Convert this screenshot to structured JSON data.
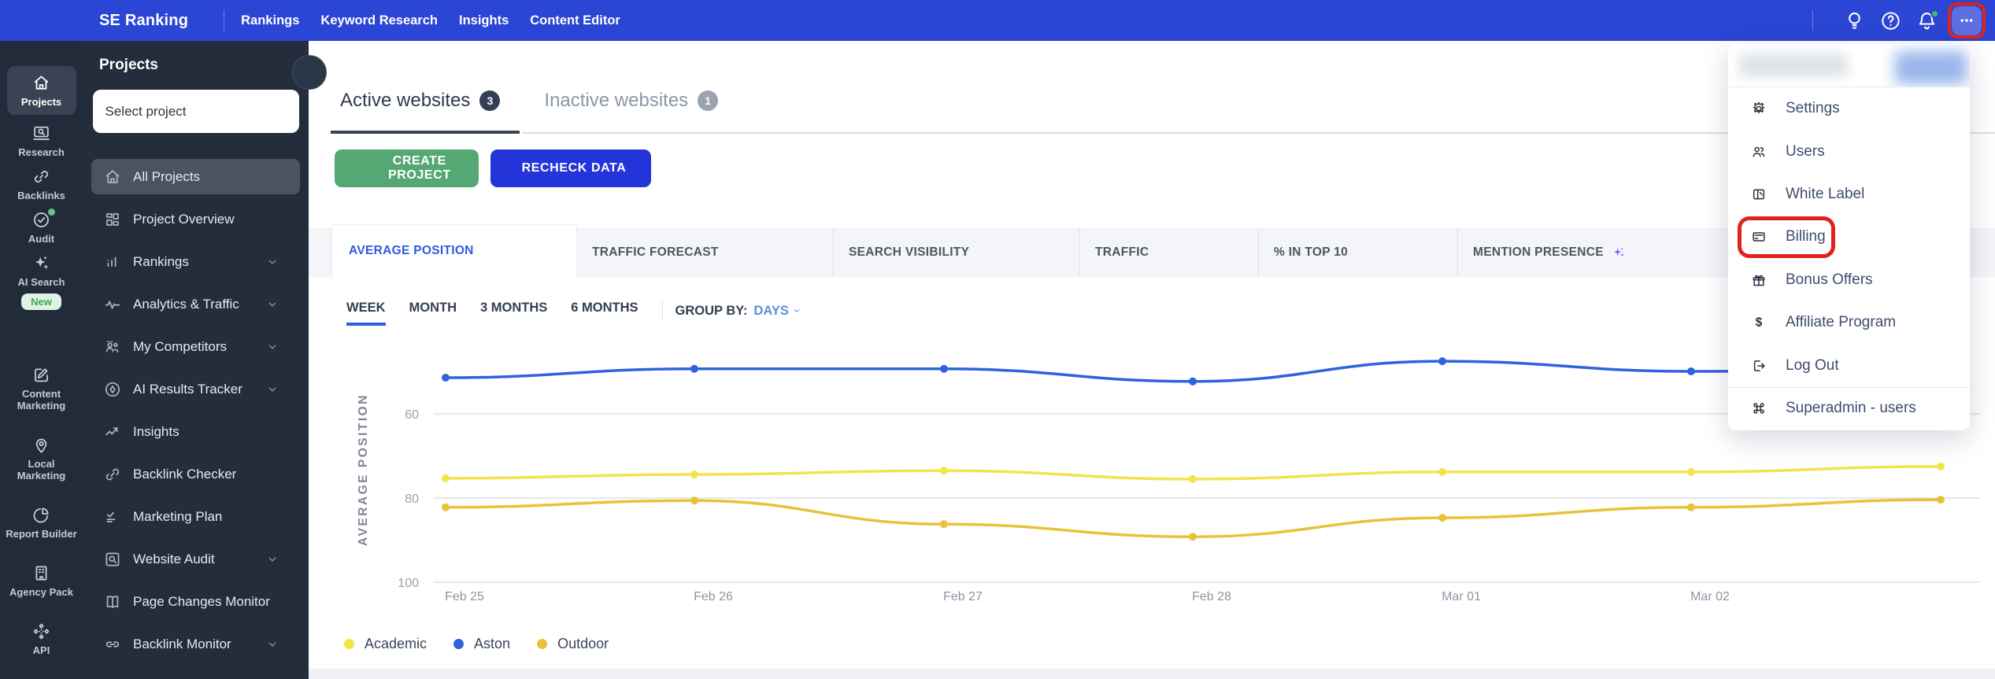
{
  "topbar": {
    "brand": "SE Ranking",
    "nav": [
      {
        "label": "Rankings"
      },
      {
        "label": "Keyword Research"
      },
      {
        "label": "Insights"
      },
      {
        "label": "Content Editor"
      }
    ],
    "right_icons": [
      {
        "name": "lightbulb-icon"
      },
      {
        "name": "help-icon"
      },
      {
        "name": "bell-icon",
        "has_notification_dot": true
      },
      {
        "name": "more-icon"
      }
    ]
  },
  "rail": {
    "items": [
      {
        "label": "Projects",
        "icon": "home-icon",
        "active": true
      },
      {
        "label": "Research",
        "icon": "research-icon"
      },
      {
        "label": "Backlinks",
        "icon": "backlinks-icon"
      },
      {
        "label": "Audit",
        "icon": "audit-icon",
        "dot": true
      },
      {
        "label": "AI Search",
        "icon": "ai-sparkles-icon",
        "badge": "New"
      },
      {
        "label": "Content Marketing",
        "icon": "content-marketing-icon",
        "gap": "lg"
      },
      {
        "label": "Local Marketing",
        "icon": "local-marketing-icon",
        "gap": "md"
      },
      {
        "label": "Report Builder",
        "icon": "report-builder-icon",
        "gap": "md"
      },
      {
        "label": "Agency Pack",
        "icon": "agency-pack-icon",
        "gap": "md"
      },
      {
        "label": "API",
        "icon": "api-icon",
        "gap": "md"
      }
    ]
  },
  "project_panel": {
    "title": "Projects",
    "select_label": "Select project",
    "items": [
      {
        "label": "All Projects",
        "icon": "home-icon",
        "active": true
      },
      {
        "label": "Project Overview",
        "icon": "overview-icon"
      },
      {
        "label": "Rankings",
        "icon": "rankings-icon",
        "expandable": true
      },
      {
        "label": "Analytics & Traffic",
        "icon": "analytics-icon",
        "expandable": true
      },
      {
        "label": "My Competitors",
        "icon": "competitors-icon",
        "expandable": true
      },
      {
        "label": "AI Results Tracker",
        "icon": "ai-results-icon",
        "expandable": true
      },
      {
        "label": "Insights",
        "icon": "insights-icon"
      },
      {
        "label": "Backlink Checker",
        "icon": "backlink-checker-icon"
      },
      {
        "label": "Marketing Plan",
        "icon": "marketing-plan-icon"
      },
      {
        "label": "Website Audit",
        "icon": "website-audit-icon",
        "expandable": true
      },
      {
        "label": "Page Changes Monitor",
        "icon": "page-changes-icon"
      },
      {
        "label": "Backlink Monitor",
        "icon": "backlink-monitor-icon",
        "expandable": true
      }
    ]
  },
  "content": {
    "website_tabs": [
      {
        "label": "Active websites",
        "count": "3",
        "active": true
      },
      {
        "label": "Inactive websites",
        "count": "1",
        "active": false
      }
    ],
    "create_button": "CREATE PROJECT",
    "recheck_button": "RECHECK DATA",
    "metric_tabs": [
      {
        "label": "AVERAGE POSITION",
        "active": true
      },
      {
        "label": "TRAFFIC FORECAST"
      },
      {
        "label": "SEARCH VISIBILITY"
      },
      {
        "label": "TRAFFIC"
      },
      {
        "label": "% IN TOP 10"
      },
      {
        "label": "MENTION PRESENCE",
        "ai": true
      }
    ],
    "range_tabs": [
      {
        "label": "WEEK",
        "active": true
      },
      {
        "label": "MONTH"
      },
      {
        "label": "3 MONTHS"
      },
      {
        "label": "6 MONTHS"
      }
    ],
    "group_by_label": "GROUP BY:",
    "group_by_value": "DAYS"
  },
  "chart_data": {
    "type": "line",
    "title": "",
    "xlabel": "",
    "ylabel": "AVERAGE POSITION",
    "categories": [
      "Feb 25",
      "Feb 26",
      "Feb 27",
      "Feb 28",
      "Mar 01",
      "Mar 02",
      ""
    ],
    "y_ticks": [
      60,
      80,
      100
    ],
    "y_range": [
      40,
      100
    ],
    "y_axis_inverted": true,
    "grid": true,
    "legend_position": "bottom",
    "series": [
      {
        "name": "Academic",
        "color": "#f3e44b",
        "values": [
          75.3,
          74.4,
          73.5,
          75.5,
          73.8,
          73.8,
          72.5
        ]
      },
      {
        "name": "Aston",
        "color": "#2e63dd",
        "values": [
          51.4,
          49.3,
          49.3,
          52.3,
          47.5,
          49.9,
          49.3
        ]
      },
      {
        "name": "Outdoor",
        "color": "#e8c238",
        "values": [
          82.2,
          80.6,
          86.2,
          89.2,
          84.7,
          82.2,
          80.4
        ]
      }
    ]
  },
  "menu": {
    "items": [
      {
        "label": "Settings",
        "icon": "gear-icon"
      },
      {
        "label": "Users",
        "icon": "users-icon"
      },
      {
        "label": "White Label",
        "icon": "white-label-icon"
      },
      {
        "label": "Billing",
        "icon": "billing-icon",
        "highlighted": true
      },
      {
        "label": "Bonus Offers",
        "icon": "gift-icon"
      },
      {
        "label": "Affiliate Program",
        "icon": "dollar-icon"
      },
      {
        "label": "Log Out",
        "icon": "logout-icon"
      },
      {
        "label": "Superadmin - users",
        "icon": "command-icon",
        "divider_before": true
      }
    ]
  },
  "annotations": {
    "highlight_color": "#df231b"
  }
}
